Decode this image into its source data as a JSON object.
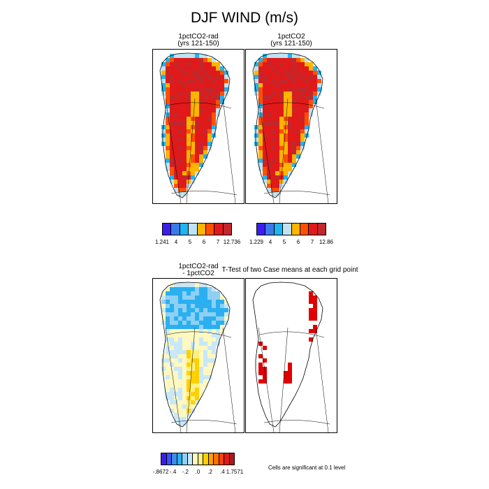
{
  "title": "DJF WIND (m/s)",
  "panels": [
    {
      "title": "1pctCO2-rad\n(yrs 121-150)"
    },
    {
      "title": "1pctCO2\n(yrs 121-150)"
    },
    {
      "title": "1pctCO2-rad\n- 1pctCO2"
    },
    {
      "title": "T-Test of two Case means at each grid point"
    }
  ],
  "colorbars": [
    {
      "colors": [
        "#3a1ef0",
        "#3c79e8",
        "#20b4f0",
        "#bfe3f2",
        "#ffb400",
        "#ff5000",
        "#e01a1a",
        "#c0282d"
      ],
      "labels": [
        "1.241",
        "4",
        "5",
        "6",
        "7",
        "12.736"
      ]
    },
    {
      "colors": [
        "#3a1ef0",
        "#3c79e8",
        "#20b4f0",
        "#bfe3f2",
        "#ffb400",
        "#ff5000",
        "#e01a1a",
        "#c0282d"
      ],
      "labels": [
        "1.229",
        "4",
        "5",
        "6",
        "7",
        "12.86"
      ]
    },
    {
      "colors": [
        "#3a1ef0",
        "#3c55ee",
        "#3c8ce8",
        "#2ab0f0",
        "#8ed0f4",
        "#c8e8f8",
        "#fff8c0",
        "#fff080",
        "#ffd000",
        "#ffa000",
        "#ff7000",
        "#ff4010",
        "#e01a1a",
        "#b01818"
      ],
      "labels": [
        "-.8672",
        "-.4",
        "-.2",
        ".0",
        ".2",
        ".4",
        "1.7571"
      ]
    }
  ],
  "note": "Cells are significant at 0.1 level",
  "chart_data": [
    {
      "type": "heatmap",
      "title": "1pctCO2-rad (yrs 121-150)",
      "variable": "DJF WIND",
      "units": "m/s",
      "range": [
        1.241,
        12.736
      ],
      "levels": [
        4,
        5,
        6,
        7
      ]
    },
    {
      "type": "heatmap",
      "title": "1pctCO2 (yrs 121-150)",
      "variable": "DJF WIND",
      "units": "m/s",
      "range": [
        1.229,
        12.86
      ],
      "levels": [
        4,
        5,
        6,
        7
      ]
    },
    {
      "type": "heatmap",
      "title": "1pctCO2-rad - 1pctCO2",
      "variable": "DJF WIND difference",
      "units": "m/s",
      "range": [
        -0.8672,
        1.7571
      ],
      "levels": [
        -0.4,
        -0.2,
        0,
        0.2,
        0.4
      ]
    },
    {
      "type": "heatmap",
      "title": "T-Test of two Case means at each grid point",
      "significance_level": 0.1
    }
  ]
}
